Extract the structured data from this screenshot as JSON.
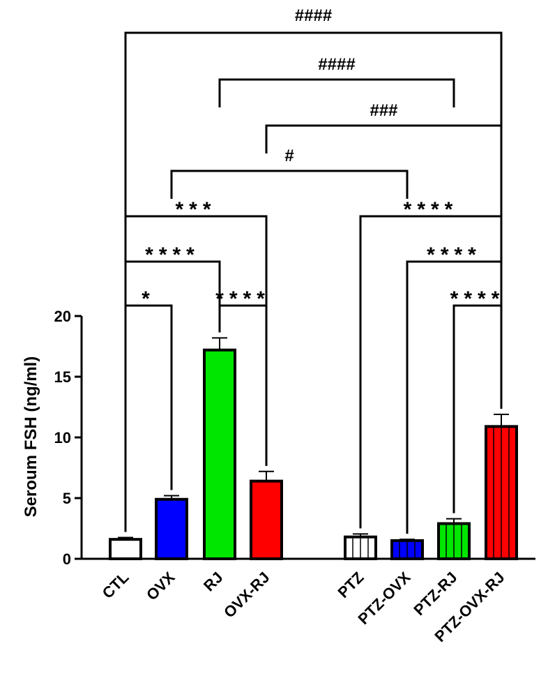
{
  "chart_data": {
    "type": "bar",
    "ylabel": "Seroum FSH (ng/ml)",
    "ylim": [
      0,
      20
    ],
    "yticks": [
      0,
      5,
      10,
      15,
      20
    ],
    "categories": [
      "CTL",
      "OVX",
      "RJ",
      "OVX-RJ",
      "PTZ",
      "PTZ-OVX",
      "PTZ-RJ",
      "PTZ-OVX-RJ"
    ],
    "values": [
      1.6,
      4.9,
      17.2,
      6.4,
      1.8,
      1.5,
      2.9,
      10.9
    ],
    "errors": [
      0.15,
      0.3,
      1.0,
      0.8,
      0.25,
      0.1,
      0.4,
      1.0
    ],
    "colors": [
      "#ffffff",
      "#0000ff",
      "#00e600",
      "#ff0000",
      "#ffffff",
      "#0000ff",
      "#00e600",
      "#ff0000"
    ],
    "hatched": [
      false,
      false,
      false,
      false,
      true,
      true,
      true,
      true
    ],
    "grid": false,
    "significance": [
      {
        "from": 0,
        "to": 7,
        "label": "####"
      },
      {
        "from": 2,
        "to": 6,
        "label": "####"
      },
      {
        "from": 3,
        "to": 7,
        "label": "###"
      },
      {
        "from": 1,
        "to": 5,
        "label": "#"
      },
      {
        "from": 0,
        "to": 3,
        "label": "***"
      },
      {
        "from": 4,
        "to": 7,
        "label": "****"
      },
      {
        "from": 0,
        "to": 2,
        "label": "****"
      },
      {
        "from": 5,
        "to": 7,
        "label": "****"
      },
      {
        "from": 0,
        "to": 1,
        "label": "*"
      },
      {
        "from": 2,
        "to": 3,
        "label": "****"
      },
      {
        "from": 6,
        "to": 7,
        "label": "****"
      }
    ]
  }
}
